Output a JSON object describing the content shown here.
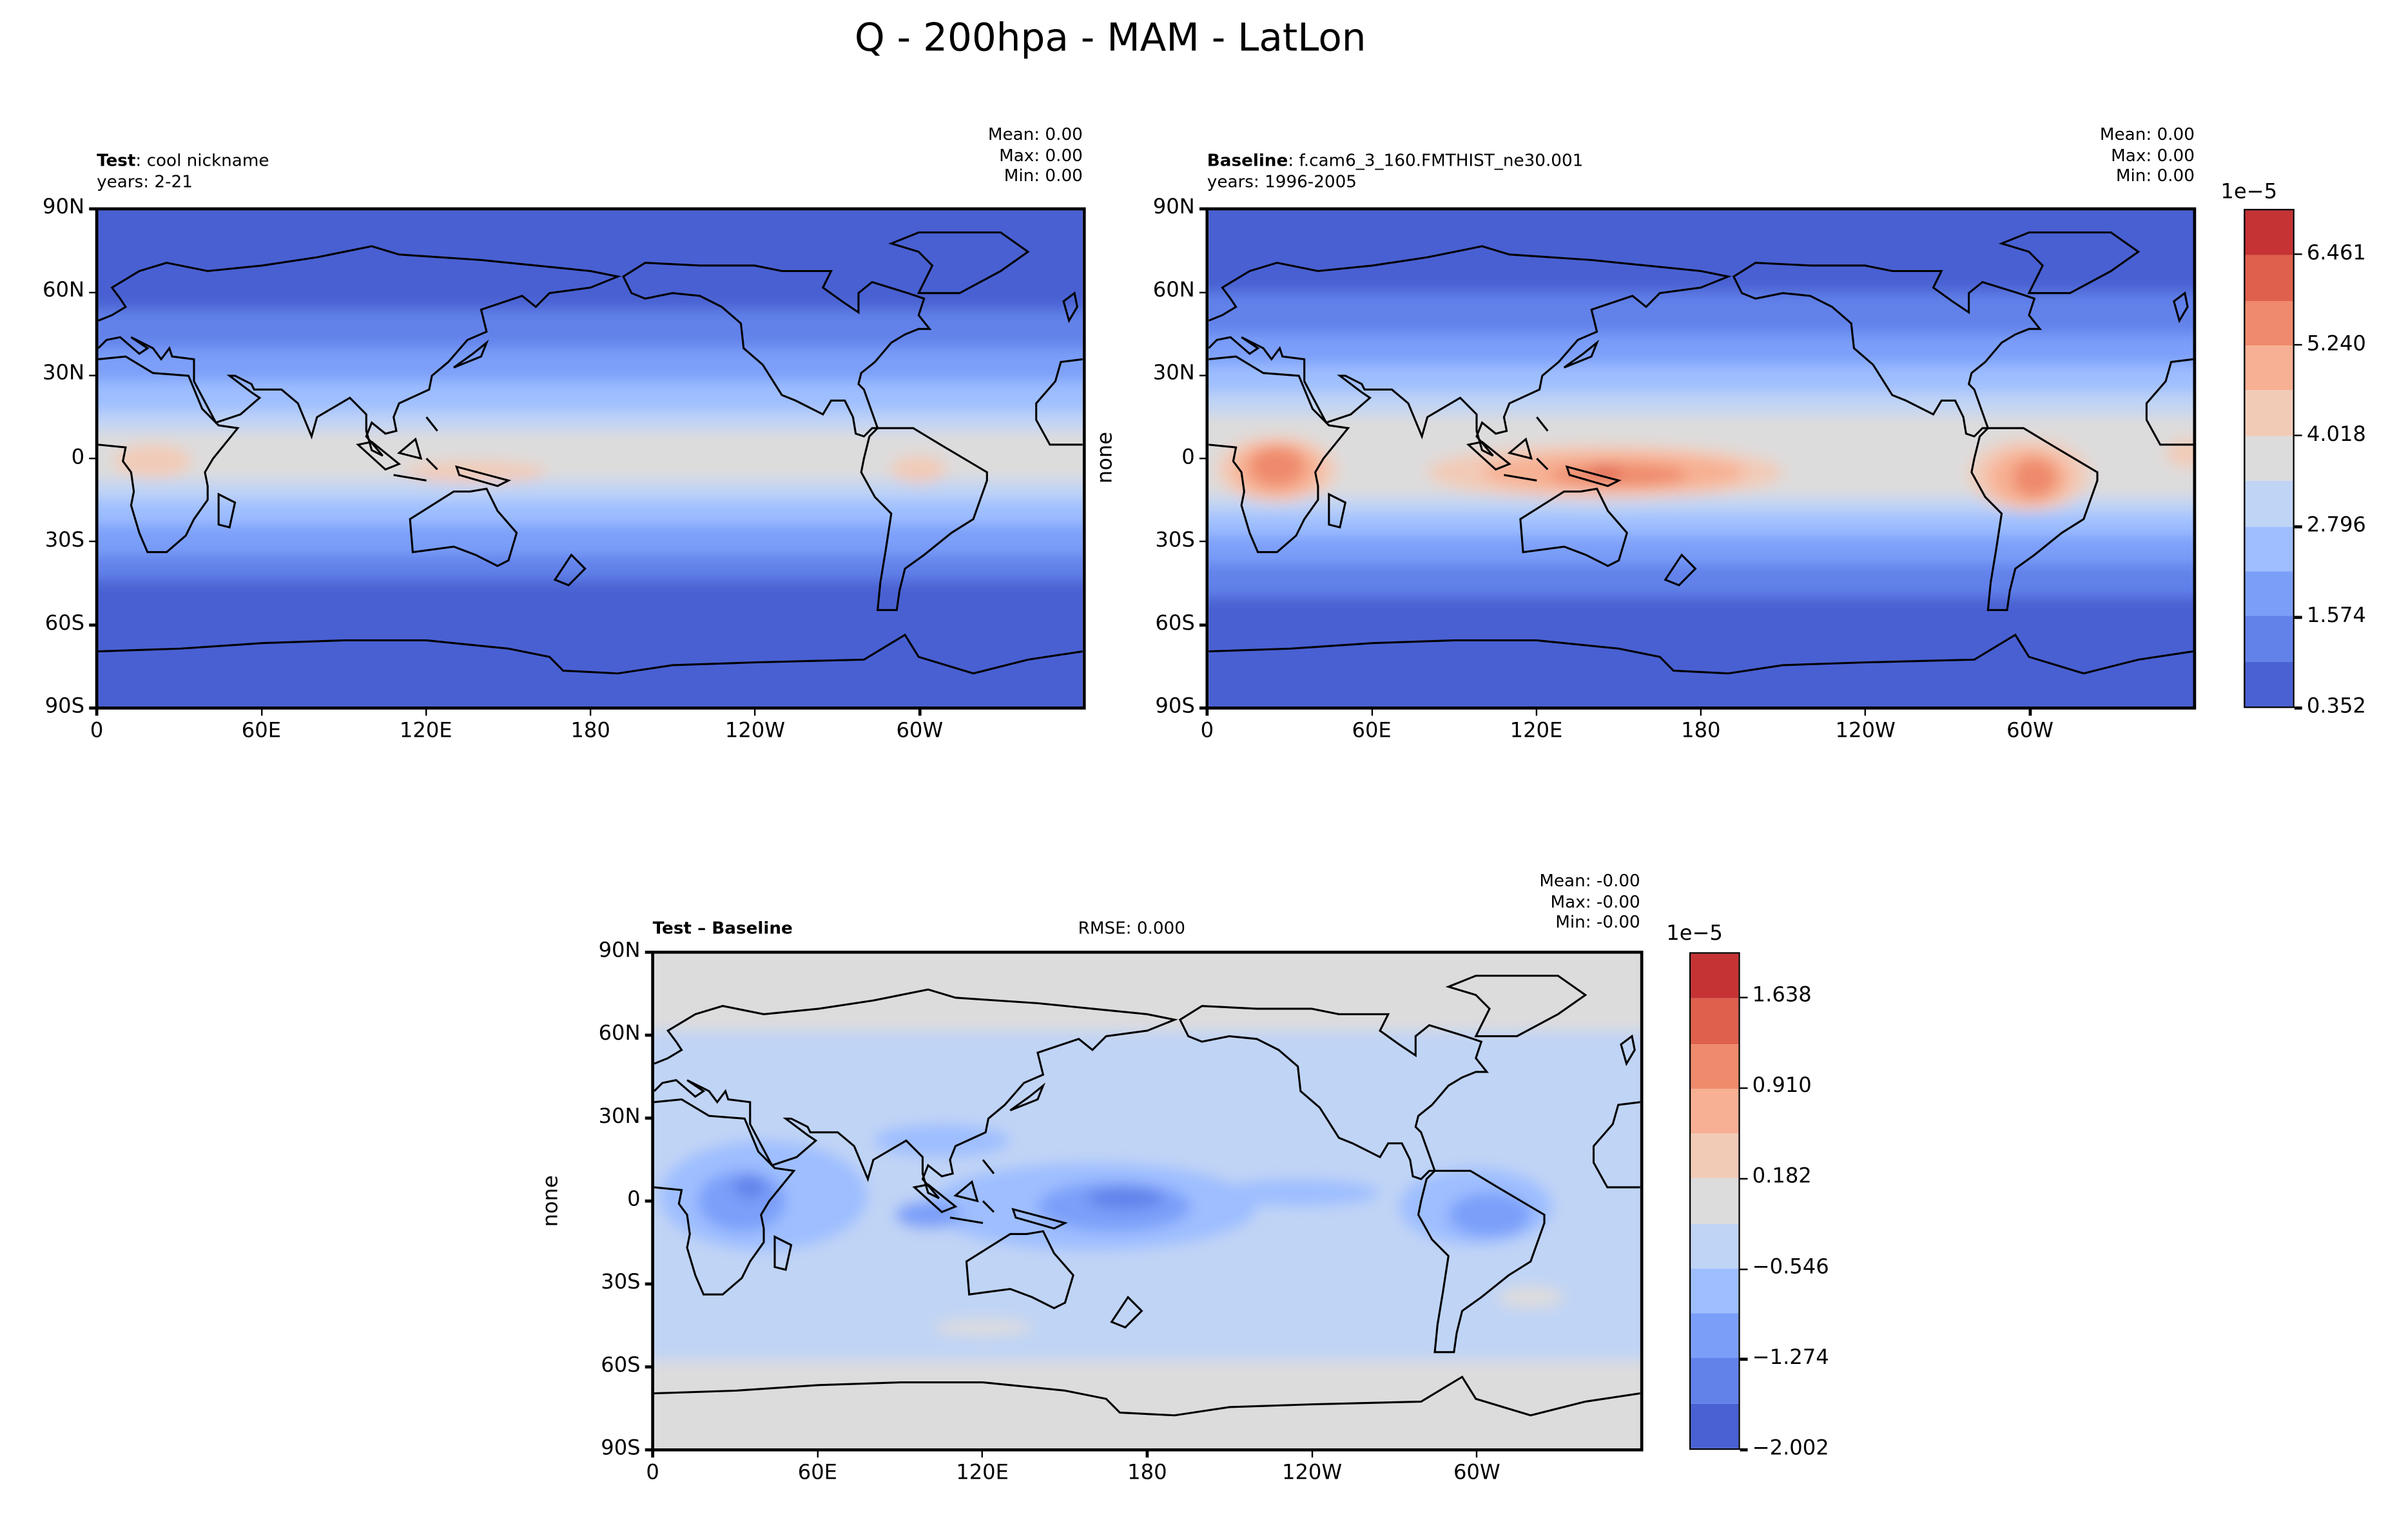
{
  "figure_title": "Q - 200hpa - MAM - LatLon",
  "colors": [
    "#4961d2",
    "#6282ea",
    "#7b9ff9",
    "#9ebeff",
    "#c0d4f5",
    "#dddcdc",
    "#f2cbb7",
    "#f7b093",
    "#ef8a6c",
    "#de604d",
    "#c53334"
  ],
  "chart_data": [
    {
      "type": "heatmap",
      "panel": "test",
      "title_bold": "Test",
      "title_rest": ": cool nickname",
      "subtitle": "years: 2-21",
      "stats": {
        "mean": "Mean:  0.00",
        "max": "Max:  0.00",
        "min": "Min:  0.00"
      },
      "xticks": [
        "0",
        "60E",
        "120E",
        "180",
        "120W",
        "60W"
      ],
      "yticks": [
        "90N",
        "60N",
        "30N",
        "0",
        "30S",
        "60S",
        "90S"
      ],
      "ylabel": ""
    },
    {
      "type": "heatmap",
      "panel": "baseline",
      "title_bold": "Baseline",
      "title_rest": ": f.cam6_3_160.FMTHIST_ne30.001",
      "subtitle": "years: 1996-2005",
      "stats": {
        "mean": "Mean:  0.00",
        "max": "Max:  0.00",
        "min": "Min:  0.00"
      },
      "xticks": [
        "0",
        "60E",
        "120E",
        "180",
        "120W",
        "60W"
      ],
      "yticks": [
        "90N",
        "60N",
        "30N",
        "0",
        "30S",
        "60S",
        "90S"
      ],
      "ylabel": "none",
      "colorbar": {
        "scale_label": "1e−5",
        "ticks": [
          "0.352",
          "1.574",
          "2.796",
          "4.018",
          "5.240",
          "6.461"
        ],
        "range": [
          0.352,
          7.07
        ],
        "levels": 11
      }
    },
    {
      "type": "heatmap",
      "panel": "diff",
      "title_bold": "Test – Baseline",
      "rmse": "RMSE: 0.000",
      "stats": {
        "mean": "Mean: -0.00",
        "max": "Max: -0.00",
        "min": "Min: -0.00"
      },
      "xticks": [
        "0",
        "60E",
        "120E",
        "180",
        "120W",
        "60W"
      ],
      "yticks": [
        "90N",
        "60N",
        "30N",
        "0",
        "30S",
        "60S",
        "90S"
      ],
      "ylabel": "none",
      "colorbar": {
        "scale_label": "1e−5",
        "ticks": [
          "−2.002",
          "−1.274",
          "−0.546",
          "0.182",
          "0.910",
          "1.638"
        ],
        "range": [
          -2.002,
          2.002
        ],
        "levels": 11
      }
    }
  ]
}
